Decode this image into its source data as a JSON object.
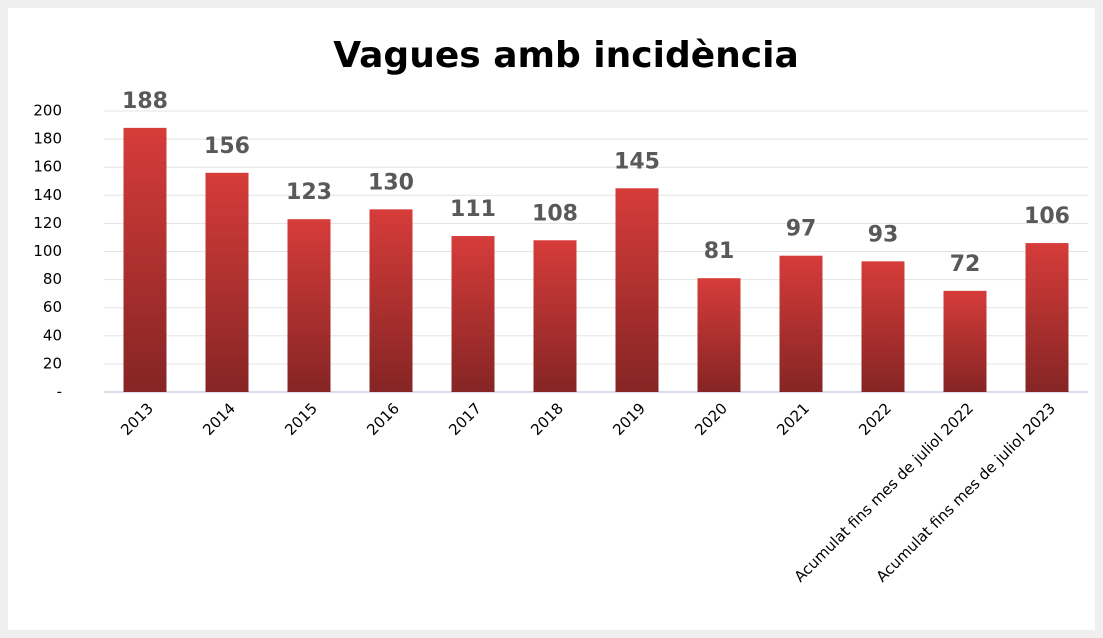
{
  "chart_data": {
    "type": "bar",
    "title": "Vagues amb incidència",
    "categories": [
      "2013",
      "2014",
      "2015",
      "2016",
      "2017",
      "2018",
      "2019",
      "2020",
      "2021",
      "2022",
      "Acumulat fins mes de juliol 2022",
      "Acumulat fins mes de juliol 2023"
    ],
    "values": [
      188,
      156,
      123,
      130,
      111,
      108,
      145,
      81,
      97,
      93,
      72,
      106
    ],
    "color": "#d63c3a",
    "ylim": [
      0,
      200
    ],
    "yticks": [
      {
        "value": 0,
        "label": "-"
      },
      20,
      40,
      60,
      80,
      100,
      120,
      140,
      160,
      180,
      200
    ],
    "grid": true
  }
}
